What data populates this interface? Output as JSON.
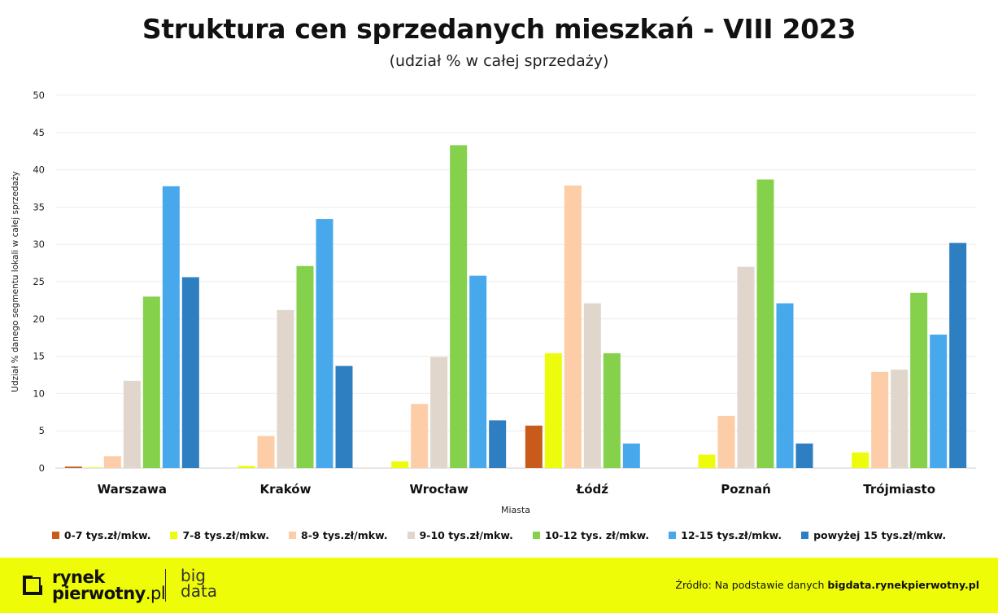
{
  "title": "Struktura cen sprzedanych mieszkań - VIII 2023",
  "subtitle": "(udział % w całej sprzedaży)",
  "footer": {
    "logo_line1": "rynek",
    "logo_line2": "pierwotny",
    "logo_suffix": ".pl",
    "bigdata_line1": "big",
    "bigdata_line2": "data",
    "source_prefix": "Źródło: Na podstawie danych",
    "source_link": "bigdata.rynekpierwotny.pl",
    "background_color": "#eefc07"
  },
  "chart_data": {
    "type": "bar",
    "ylabel": "Udział % danego segmentu lokali w całej sprzedaży",
    "xlabel": "Miasta",
    "ylim": [
      0,
      50
    ],
    "yticks": [
      0,
      5,
      10,
      15,
      20,
      25,
      30,
      35,
      40,
      45,
      50
    ],
    "grid": true,
    "legend_position": "bottom",
    "categories": [
      "Warszawa",
      "Kraków",
      "Wrocław",
      "Łódź",
      "Poznań",
      "Trójmiasto"
    ],
    "series": [
      {
        "name": "0-7 tys.zł/mkw.",
        "color": "#c85a1a",
        "values": [
          0.2,
          0,
          0,
          5.7,
          0,
          0
        ]
      },
      {
        "name": "7-8 tys.zł/mkw.",
        "color": "#ecfc0c",
        "values": [
          0.1,
          0.3,
          0.9,
          15.4,
          1.8,
          2.1
        ]
      },
      {
        "name": "8-9 tys.zł/mkw.",
        "color": "#fccda6",
        "values": [
          1.6,
          4.3,
          8.6,
          37.9,
          7.0,
          12.9
        ]
      },
      {
        "name": "9-10 tys.zł/mkw.",
        "color": "#e0d6cb",
        "values": [
          11.7,
          21.2,
          14.9,
          22.1,
          27.0,
          13.2
        ]
      },
      {
        "name": "10-12 tys. zł/mkw.",
        "color": "#86d14c",
        "values": [
          23.0,
          27.1,
          43.3,
          15.4,
          38.7,
          23.5
        ]
      },
      {
        "name": "12-15 tys.zł/mkw.",
        "color": "#47a9eb",
        "values": [
          37.8,
          33.4,
          25.8,
          3.3,
          22.1,
          17.9
        ]
      },
      {
        "name": "powyżej 15 tys.zł/mkw.",
        "color": "#2d7fc1",
        "values": [
          25.6,
          13.7,
          6.4,
          0,
          3.3,
          30.2
        ]
      }
    ]
  }
}
